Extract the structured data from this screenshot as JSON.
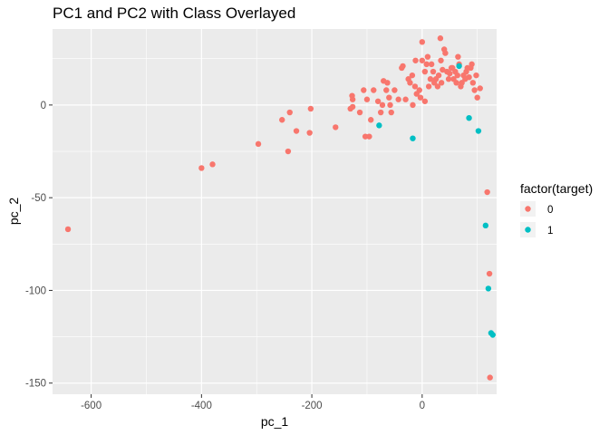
{
  "chart_data": {
    "type": "scatter",
    "title": "PC1 and PC2 with Class Overlayed",
    "xlabel": "pc_1",
    "ylabel": "pc_2",
    "xlim": [
      -670,
      135
    ],
    "ylim": [
      -156,
      41
    ],
    "x_ticks": [
      -600,
      -400,
      -200,
      0
    ],
    "y_ticks": [
      -150,
      -100,
      -50,
      0
    ],
    "grid": true,
    "legend": {
      "title": "factor(target)",
      "position": "right",
      "entries": [
        {
          "label": "0",
          "color": "#F8766D"
        },
        {
          "label": "1",
          "color": "#00BFC4"
        }
      ]
    },
    "series": [
      {
        "name": "0",
        "color": "#F8766D",
        "points": [
          [
            -642,
            -67
          ],
          [
            -400,
            -34
          ],
          [
            -380,
            -32
          ],
          [
            -297,
            -21
          ],
          [
            -254,
            -8
          ],
          [
            -243,
            -25
          ],
          [
            -240,
            -4
          ],
          [
            -228,
            -14
          ],
          [
            -202,
            -2
          ],
          [
            -204,
            -15
          ],
          [
            -157,
            -12
          ],
          [
            -130,
            -2
          ],
          [
            -127,
            5
          ],
          [
            -126,
            3
          ],
          [
            -126,
            -1
          ],
          [
            -113,
            -4
          ],
          [
            -106,
            8
          ],
          [
            -103,
            -17
          ],
          [
            -100,
            3
          ],
          [
            -96,
            -17
          ],
          [
            -93,
            -8
          ],
          [
            -88,
            8
          ],
          [
            -80,
            2
          ],
          [
            -75,
            -4
          ],
          [
            -72,
            0
          ],
          [
            -70,
            13
          ],
          [
            -65,
            8
          ],
          [
            -63,
            12
          ],
          [
            -60,
            4
          ],
          [
            -58,
            0
          ],
          [
            -56,
            -4
          ],
          [
            -50,
            8
          ],
          [
            -43,
            3
          ],
          [
            -37,
            20
          ],
          [
            -35,
            21
          ],
          [
            -30,
            3
          ],
          [
            -25,
            14
          ],
          [
            -22,
            12
          ],
          [
            -18,
            16
          ],
          [
            -17,
            0
          ],
          [
            -13,
            10
          ],
          [
            -12,
            24
          ],
          [
            -10,
            6
          ],
          [
            -5,
            8
          ],
          [
            -3,
            4
          ],
          [
            0,
            34
          ],
          [
            0,
            24
          ],
          [
            5,
            2
          ],
          [
            5,
            18
          ],
          [
            8,
            22
          ],
          [
            10,
            26
          ],
          [
            12,
            10
          ],
          [
            15,
            14
          ],
          [
            17,
            22
          ],
          [
            20,
            18
          ],
          [
            22,
            12
          ],
          [
            25,
            14
          ],
          [
            28,
            10
          ],
          [
            30,
            16
          ],
          [
            33,
            36
          ],
          [
            34,
            24
          ],
          [
            35,
            12
          ],
          [
            37,
            19
          ],
          [
            40,
            30
          ],
          [
            42,
            28
          ],
          [
            45,
            18
          ],
          [
            48,
            14
          ],
          [
            50,
            17
          ],
          [
            53,
            20
          ],
          [
            55,
            20
          ],
          [
            57,
            14
          ],
          [
            60,
            18
          ],
          [
            62,
            12
          ],
          [
            64,
            16
          ],
          [
            65,
            26
          ],
          [
            67,
            22
          ],
          [
            70,
            10
          ],
          [
            72,
            12
          ],
          [
            75,
            16
          ],
          [
            78,
            14
          ],
          [
            80,
            18
          ],
          [
            82,
            20
          ],
          [
            85,
            15
          ],
          [
            88,
            20
          ],
          [
            90,
            22
          ],
          [
            92,
            12
          ],
          [
            95,
            8
          ],
          [
            98,
            16
          ],
          [
            100,
            4
          ],
          [
            105,
            9
          ],
          [
            118,
            -47
          ],
          [
            122,
            -91
          ],
          [
            123,
            -147
          ]
        ]
      },
      {
        "name": "1",
        "color": "#00BFC4",
        "points": [
          [
            -78,
            -11
          ],
          [
            -17,
            -18
          ],
          [
            67,
            21
          ],
          [
            85,
            -7
          ],
          [
            102,
            -14
          ],
          [
            115,
            -65
          ],
          [
            120,
            -99
          ],
          [
            125,
            -123
          ],
          [
            128,
            -124
          ]
        ]
      }
    ]
  }
}
